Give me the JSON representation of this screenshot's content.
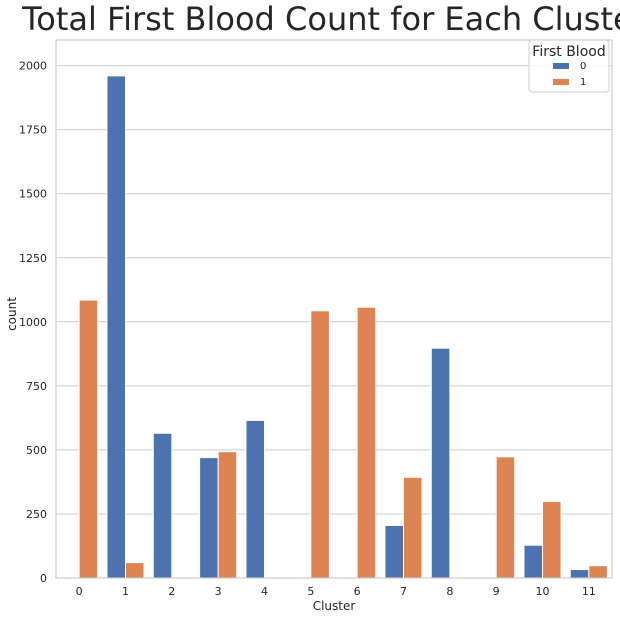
{
  "chart_data": {
    "type": "bar",
    "title": "Total First Blood Count for Each Cluster",
    "xlabel": "Cluster",
    "ylabel": "count",
    "categories": [
      "0",
      "1",
      "2",
      "3",
      "4",
      "5",
      "6",
      "7",
      "8",
      "9",
      "10",
      "11"
    ],
    "ylim": [
      0,
      2100
    ],
    "yticks": [
      "0",
      "250",
      "500",
      "750",
      "1000",
      "1250",
      "1500",
      "1750",
      "2000"
    ],
    "grid": true,
    "legend": {
      "title": "First Blood",
      "placement": "top-right"
    },
    "series": [
      {
        "name": "0",
        "color": "#4c72b0",
        "values": [
          0,
          1960,
          565,
          470,
          615,
          0,
          0,
          205,
          897,
          0,
          128,
          33
        ]
      },
      {
        "name": "1",
        "color": "#dd8452",
        "values": [
          1085,
          60,
          0,
          493,
          0,
          1043,
          1057,
          393,
          0,
          473,
          299,
          48
        ]
      }
    ]
  }
}
